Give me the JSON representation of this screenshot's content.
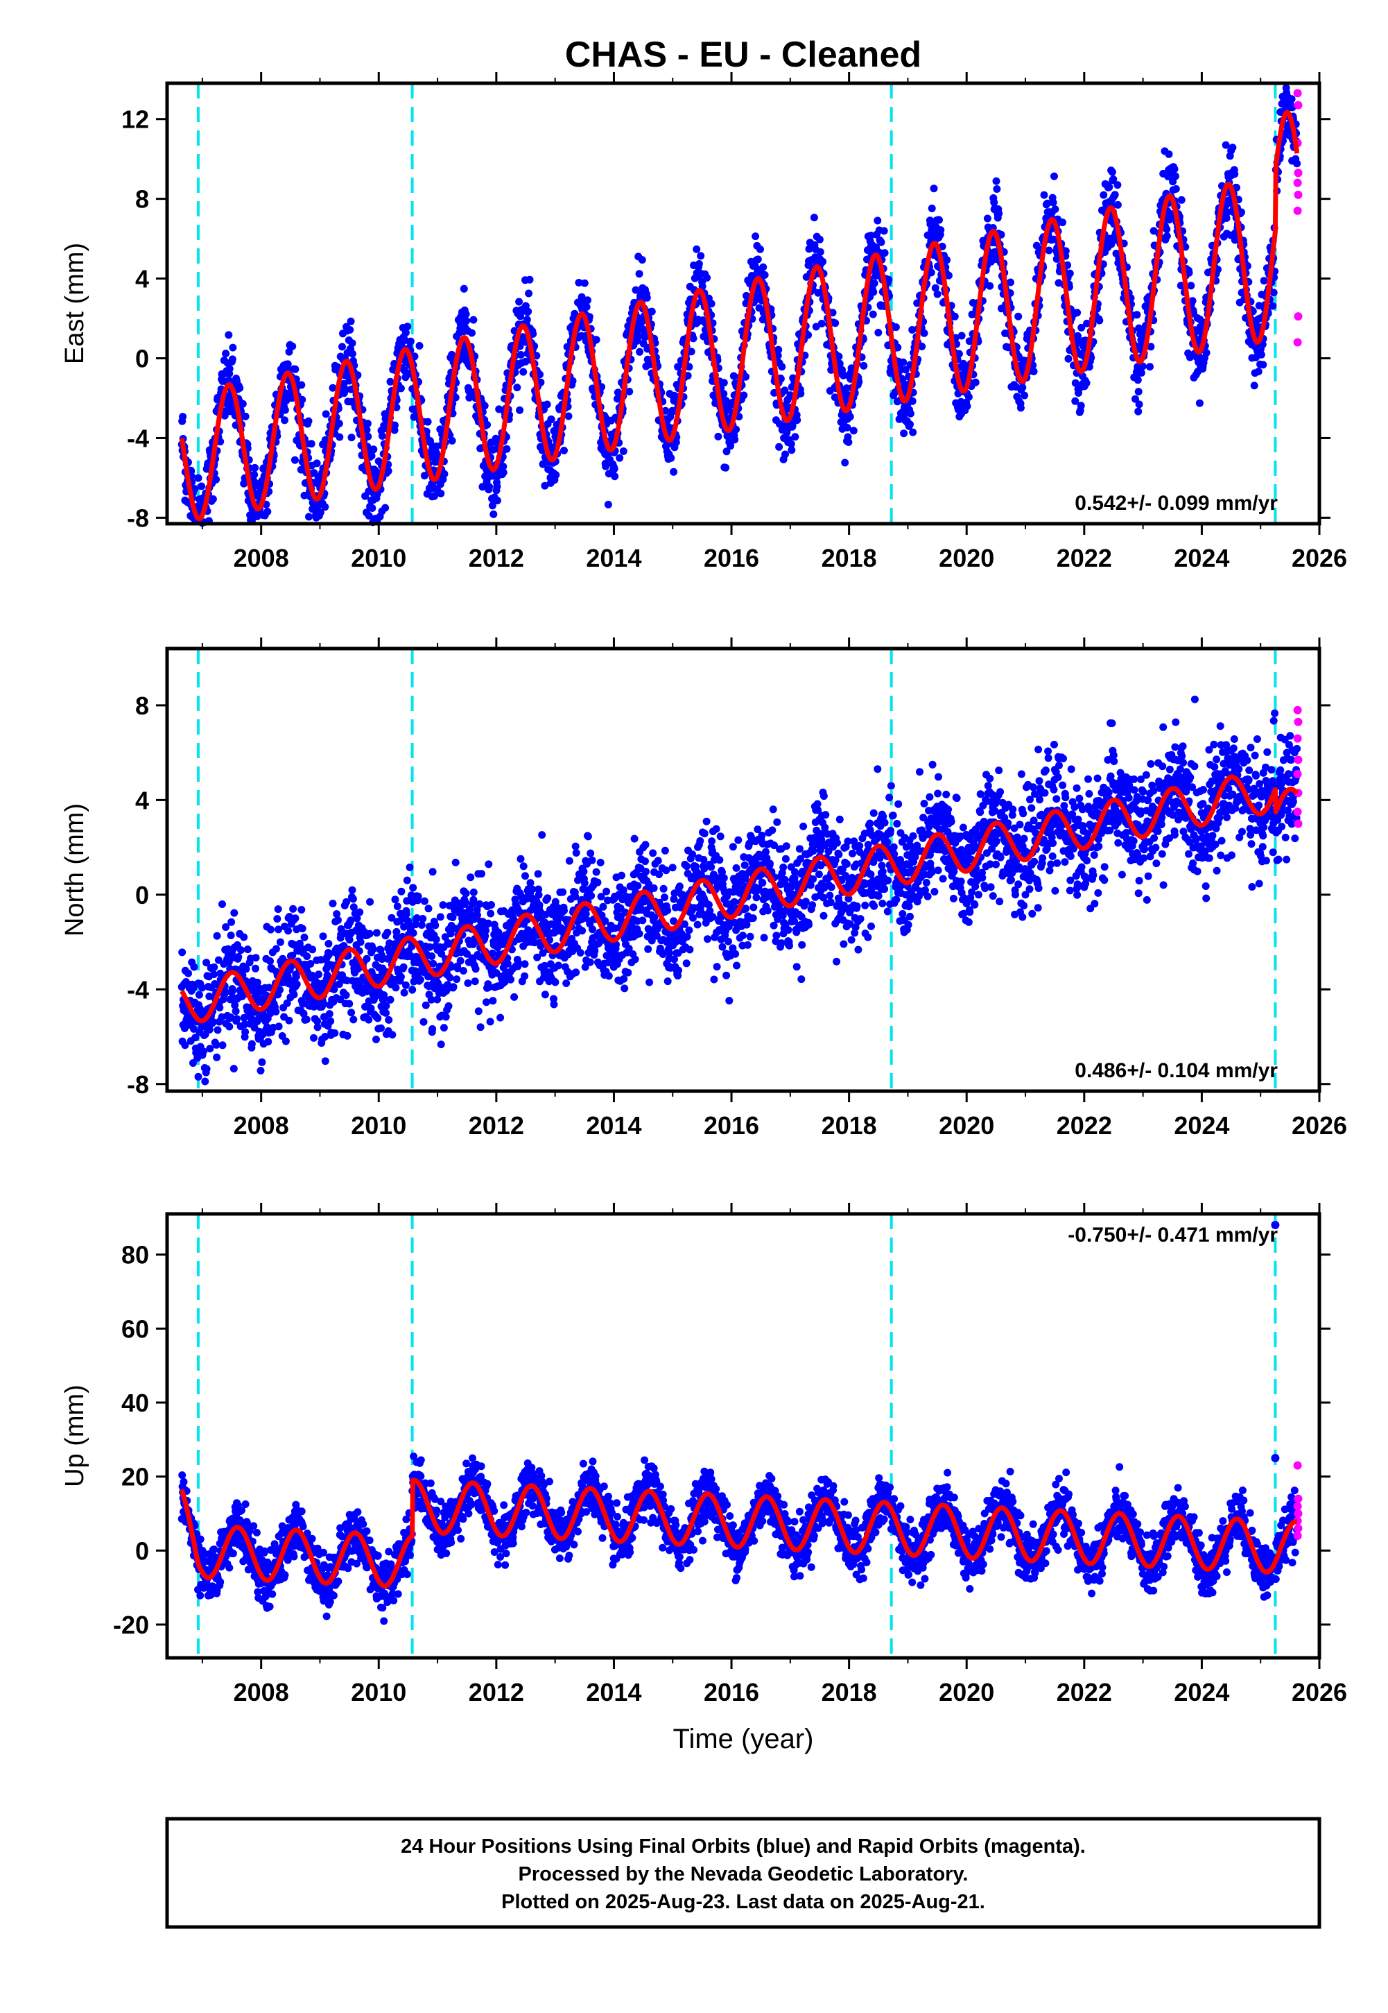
{
  "chart_data": [
    {
      "type": "scatter",
      "title": "CHAS  - EU - Cleaned",
      "ylabel": "East (mm)",
      "xlabel": "",
      "xlim": [
        2006.4,
        2026.0
      ],
      "ylim": [
        -8.3,
        13.8
      ],
      "xticks": [
        2008,
        2010,
        2012,
        2014,
        2016,
        2018,
        2020,
        2022,
        2024,
        2026
      ],
      "xtick_labels": [
        "2008",
        "2010",
        "2012",
        "2014",
        "2016",
        "2018",
        "2020",
        "2022",
        "2024",
        "2026"
      ],
      "yticks": [
        12,
        8,
        4,
        0,
        -4,
        -8
      ],
      "ytick_labels": [
        "12",
        "8",
        "4",
        "0",
        "-4",
        "-8"
      ],
      "rate_label": "0.542+/- 0.099 mm/yr",
      "rate_position": "bottom-right",
      "breaks": [
        2006.93,
        2010.57,
        2018.72,
        2025.25
      ],
      "model": {
        "intercept": -5.0,
        "trend_mm_per_yr": 0.542,
        "annual_amplitude": 3.2,
        "peak_phase_year": 0.45,
        "start": 2006.65,
        "end": 2025.62
      },
      "series": [
        {
          "name": "Final Orbits (blue)",
          "color": "#0000ff",
          "x_start": 2006.65,
          "x_end": 2025.24,
          "scatter_mm": 1.0
        },
        {
          "name": "Rapid Orbits (magenta)",
          "color": "#ff00ff",
          "x": [
            2025.63,
            2025.64,
            2025.63,
            2025.64,
            2025.63,
            2025.64,
            2025.63,
            2025.64,
            2025.63
          ],
          "y": [
            13.3,
            12.7,
            10.8,
            9.3,
            8.8,
            8.2,
            7.4,
            2.1,
            0.8
          ]
        },
        {
          "name": "Model fit",
          "color": "#ff0000"
        }
      ]
    },
    {
      "type": "scatter",
      "title": "",
      "ylabel": "North (mm)",
      "xlabel": "",
      "xlim": [
        2006.4,
        2026.0
      ],
      "ylim": [
        -8.3,
        10.4
      ],
      "xticks": [
        2008,
        2010,
        2012,
        2014,
        2016,
        2018,
        2020,
        2022,
        2024,
        2026
      ],
      "xtick_labels": [
        "2008",
        "2010",
        "2012",
        "2014",
        "2016",
        "2018",
        "2020",
        "2022",
        "2024",
        "2026"
      ],
      "yticks": [
        8,
        4,
        0,
        -4,
        -8
      ],
      "ytick_labels": [
        "8",
        "4",
        "0",
        "-4",
        "-8"
      ],
      "rate_label": "0.486+/- 0.104 mm/yr",
      "rate_position": "bottom-right",
      "breaks": [
        2006.93,
        2010.57,
        2018.72,
        2025.25
      ],
      "model": {
        "intercept": -4.6,
        "trend_mm_per_yr": 0.486,
        "annual_amplitude": 0.9,
        "peak_phase_year": 0.5,
        "start": 2006.65,
        "end": 2025.62
      },
      "series": [
        {
          "name": "Final Orbits (blue)",
          "color": "#0000ff",
          "x_start": 2006.65,
          "x_end": 2025.24,
          "scatter_mm": 1.2
        },
        {
          "name": "Rapid Orbits (magenta)",
          "color": "#ff00ff",
          "x": [
            2025.63,
            2025.64,
            2025.63,
            2025.64,
            2025.63,
            2025.64,
            2025.63,
            2025.64
          ],
          "y": [
            7.8,
            7.3,
            6.6,
            5.7,
            5.1,
            4.3,
            3.5,
            3.0
          ]
        },
        {
          "name": "Model fit",
          "color": "#ff0000"
        }
      ]
    },
    {
      "type": "scatter",
      "title": "",
      "ylabel": "Up (mm)",
      "xlabel": "Time (year)",
      "xlim": [
        2006.4,
        2026.0
      ],
      "ylim": [
        -29,
        91
      ],
      "xticks": [
        2008,
        2010,
        2012,
        2014,
        2016,
        2018,
        2020,
        2022,
        2024,
        2026
      ],
      "xtick_labels": [
        "2008",
        "2010",
        "2012",
        "2014",
        "2016",
        "2018",
        "2020",
        "2022",
        "2024",
        "2026"
      ],
      "yticks": [
        80,
        60,
        40,
        20,
        0,
        -20
      ],
      "ytick_labels": [
        "80",
        "60",
        "40",
        "20",
        "0",
        "-20"
      ],
      "rate_label": "-0.750+/- 0.471 mm/yr",
      "rate_position": "top-right",
      "breaks": [
        2006.93,
        2010.57,
        2018.72,
        2025.25
      ],
      "model": {
        "intercept_before_2010_57": -7.0,
        "intercept_after_2010_57": 8.0,
        "trend_mm_per_yr": -0.75,
        "annual_amplitude": 7.0,
        "peak_phase_year": 0.6,
        "start": 2006.65,
        "end": 2025.62
      },
      "series": [
        {
          "name": "Final Orbits (blue)",
          "color": "#0000ff",
          "x_start": 2006.65,
          "x_end": 2025.24,
          "scatter_mm": 3.5,
          "outliers": [
            {
              "x": 2025.25,
              "y": 88
            },
            {
              "x": 2025.25,
              "y": 25
            }
          ]
        },
        {
          "name": "Rapid Orbits (magenta)",
          "color": "#ff00ff",
          "x": [
            2025.63,
            2025.64,
            2025.63,
            2025.64,
            2025.63,
            2025.64,
            2025.63
          ],
          "y": [
            23,
            14,
            12,
            10,
            8,
            6,
            4
          ]
        },
        {
          "name": "Model fit",
          "color": "#ff0000"
        }
      ]
    }
  ],
  "footer": {
    "line1": "24 Hour Positions Using Final Orbits (blue) and Rapid Orbits (magenta).",
    "line2": "Processed by the Nevada Geodetic Laboratory.",
    "line3": "Plotted on 2025-Aug-23. Last data on 2025-Aug-21."
  },
  "colors": {
    "final": "#0000ff",
    "rapid": "#ff00ff",
    "model": "#ff0000",
    "breaks": "#00e5ee"
  }
}
